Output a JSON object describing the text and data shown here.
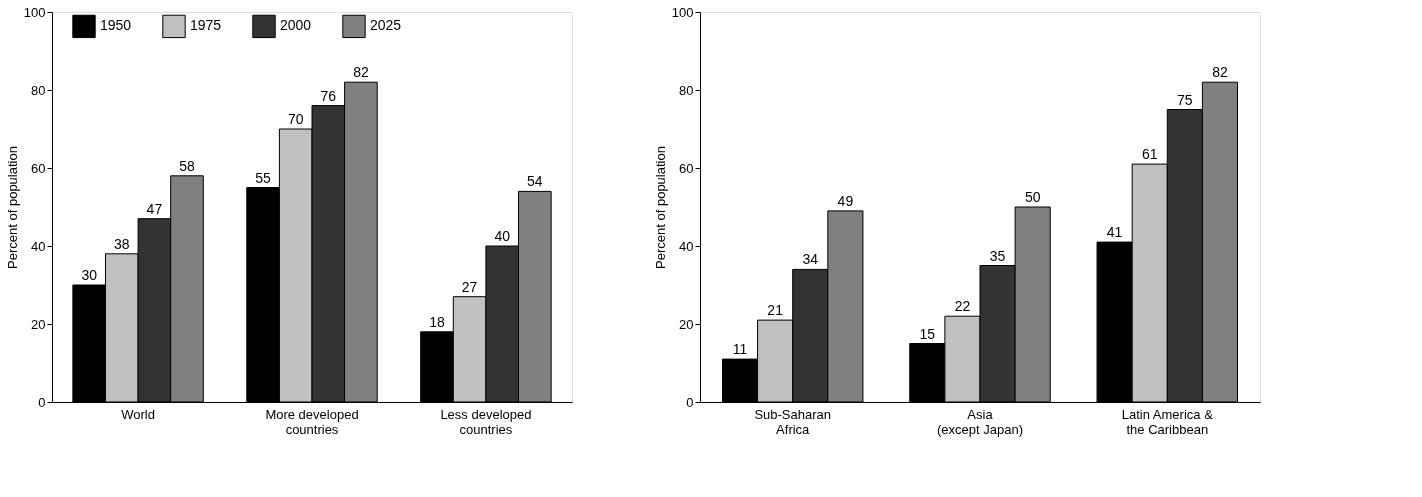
{
  "chart_data": [
    {
      "type": "bar",
      "ylabel": "Percent of population",
      "categories": [
        "World",
        "More developed\ncountries",
        "Less developed\ncountries"
      ],
      "series": [
        {
          "name": "1950",
          "color": "#000000",
          "values": [
            30,
            55,
            18
          ]
        },
        {
          "name": "1975",
          "color": "#c0c0c0",
          "values": [
            38,
            70,
            27
          ]
        },
        {
          "name": "2000",
          "color": "#333333",
          "values": [
            47,
            76,
            40
          ]
        },
        {
          "name": "2025",
          "color": "#808080",
          "values": [
            58,
            82,
            54
          ]
        }
      ],
      "ylim": [
        0,
        100
      ],
      "yticks": [
        0,
        20,
        40,
        60,
        80,
        100
      ],
      "grid": false,
      "legend": "top",
      "data_labels": true
    },
    {
      "type": "bar",
      "ylabel": "Percent of population",
      "categories": [
        "Sub-Saharan\nAfrica",
        "Asia\n(except Japan)",
        "Latin America &\nthe Caribbean"
      ],
      "series": [
        {
          "color": "#000000",
          "values": [
            11,
            15,
            41
          ]
        },
        {
          "color": "#c0c0c0",
          "values": [
            21,
            22,
            61
          ]
        },
        {
          "color": "#333333",
          "values": [
            34,
            35,
            75
          ]
        },
        {
          "color": "#808080",
          "values": [
            49,
            50,
            82
          ]
        }
      ],
      "ylim": [
        0,
        100
      ],
      "yticks": [
        0,
        20,
        40,
        60,
        80,
        100
      ],
      "grid": false,
      "legend": false,
      "data_labels": true
    }
  ]
}
